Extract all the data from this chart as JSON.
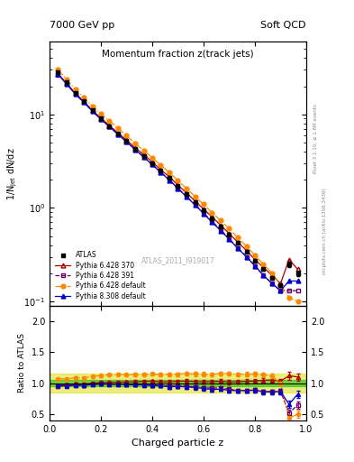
{
  "title_top_left": "7000 GeV pp",
  "title_top_right": "Soft QCD",
  "title_main": "Momentum fraction z(track jets)",
  "ylabel_main": "1/N$_\\mathrm{jet}$ dN/dz",
  "ylabel_ratio": "Ratio to ATLAS",
  "xlabel": "Charged particle z",
  "right_label_top": "Rivet 3.1.10; ≥ 1.6M events",
  "right_label_bot": "mcplots.cern.ch [arXiv:1306.3436]",
  "watermark": "ATLAS_2011_I919017",
  "legend_entries": [
    "ATLAS",
    "Pythia 6.428 370",
    "Pythia 6.428 391",
    "Pythia 6.428 default",
    "Pythia 8.308 default"
  ],
  "z_values": [
    0.033,
    0.067,
    0.1,
    0.133,
    0.167,
    0.2,
    0.233,
    0.267,
    0.3,
    0.333,
    0.367,
    0.4,
    0.433,
    0.467,
    0.5,
    0.533,
    0.567,
    0.6,
    0.633,
    0.667,
    0.7,
    0.733,
    0.767,
    0.8,
    0.833,
    0.867,
    0.9,
    0.933,
    0.967
  ],
  "atlas_y": [
    28.0,
    22.0,
    17.0,
    14.0,
    11.0,
    9.0,
    7.5,
    6.2,
    5.2,
    4.3,
    3.6,
    3.0,
    2.5,
    2.1,
    1.7,
    1.4,
    1.15,
    0.95,
    0.78,
    0.63,
    0.52,
    0.42,
    0.34,
    0.27,
    0.22,
    0.18,
    0.15,
    0.25,
    0.2
  ],
  "atlas_yerr": [
    0.5,
    0.4,
    0.35,
    0.3,
    0.25,
    0.2,
    0.18,
    0.15,
    0.13,
    0.11,
    0.09,
    0.08,
    0.07,
    0.06,
    0.05,
    0.04,
    0.035,
    0.03,
    0.025,
    0.02,
    0.017,
    0.014,
    0.011,
    0.009,
    0.008,
    0.007,
    0.006,
    0.015,
    0.012
  ],
  "p6_370_y": [
    27.0,
    21.5,
    16.8,
    13.8,
    11.0,
    9.1,
    7.6,
    6.3,
    5.3,
    4.4,
    3.7,
    3.1,
    2.55,
    2.15,
    1.75,
    1.45,
    1.18,
    0.97,
    0.8,
    0.65,
    0.53,
    0.43,
    0.35,
    0.28,
    0.23,
    0.19,
    0.155,
    0.28,
    0.22
  ],
  "p6_391_y": [
    26.5,
    21.2,
    16.5,
    13.5,
    10.8,
    8.9,
    7.4,
    6.1,
    5.1,
    4.2,
    3.5,
    2.9,
    2.4,
    2.0,
    1.62,
    1.33,
    1.08,
    0.88,
    0.72,
    0.58,
    0.47,
    0.37,
    0.3,
    0.24,
    0.19,
    0.155,
    0.13,
    0.13,
    0.13
  ],
  "p6_def_y": [
    30.0,
    23.5,
    18.5,
    15.2,
    12.2,
    10.1,
    8.5,
    7.1,
    5.9,
    4.9,
    4.1,
    3.45,
    2.85,
    2.4,
    1.95,
    1.62,
    1.32,
    1.09,
    0.89,
    0.73,
    0.6,
    0.48,
    0.39,
    0.31,
    0.25,
    0.2,
    0.15,
    0.11,
    0.1
  ],
  "p8_def_y": [
    27.0,
    21.0,
    16.5,
    13.5,
    10.8,
    8.9,
    7.4,
    6.1,
    5.1,
    4.2,
    3.5,
    2.9,
    2.4,
    1.98,
    1.61,
    1.32,
    1.07,
    0.87,
    0.7,
    0.57,
    0.46,
    0.37,
    0.3,
    0.24,
    0.19,
    0.155,
    0.13,
    0.165,
    0.165
  ],
  "col_atlas": "#000000",
  "col_p6_370": "#aa0000",
  "col_p6_391": "#660066",
  "col_p6_def": "#ff8800",
  "col_p8_def": "#0000cc",
  "band_green_lo": 0.95,
  "band_green_hi": 1.05,
  "band_yellow_lo": 0.85,
  "band_yellow_hi": 1.15,
  "ylim_main": [
    0.09,
    60
  ],
  "ylim_ratio": [
    0.4,
    2.25
  ],
  "yticks_ratio": [
    0.5,
    1.0,
    1.5,
    2.0
  ],
  "xlim": [
    0.0,
    1.0
  ]
}
